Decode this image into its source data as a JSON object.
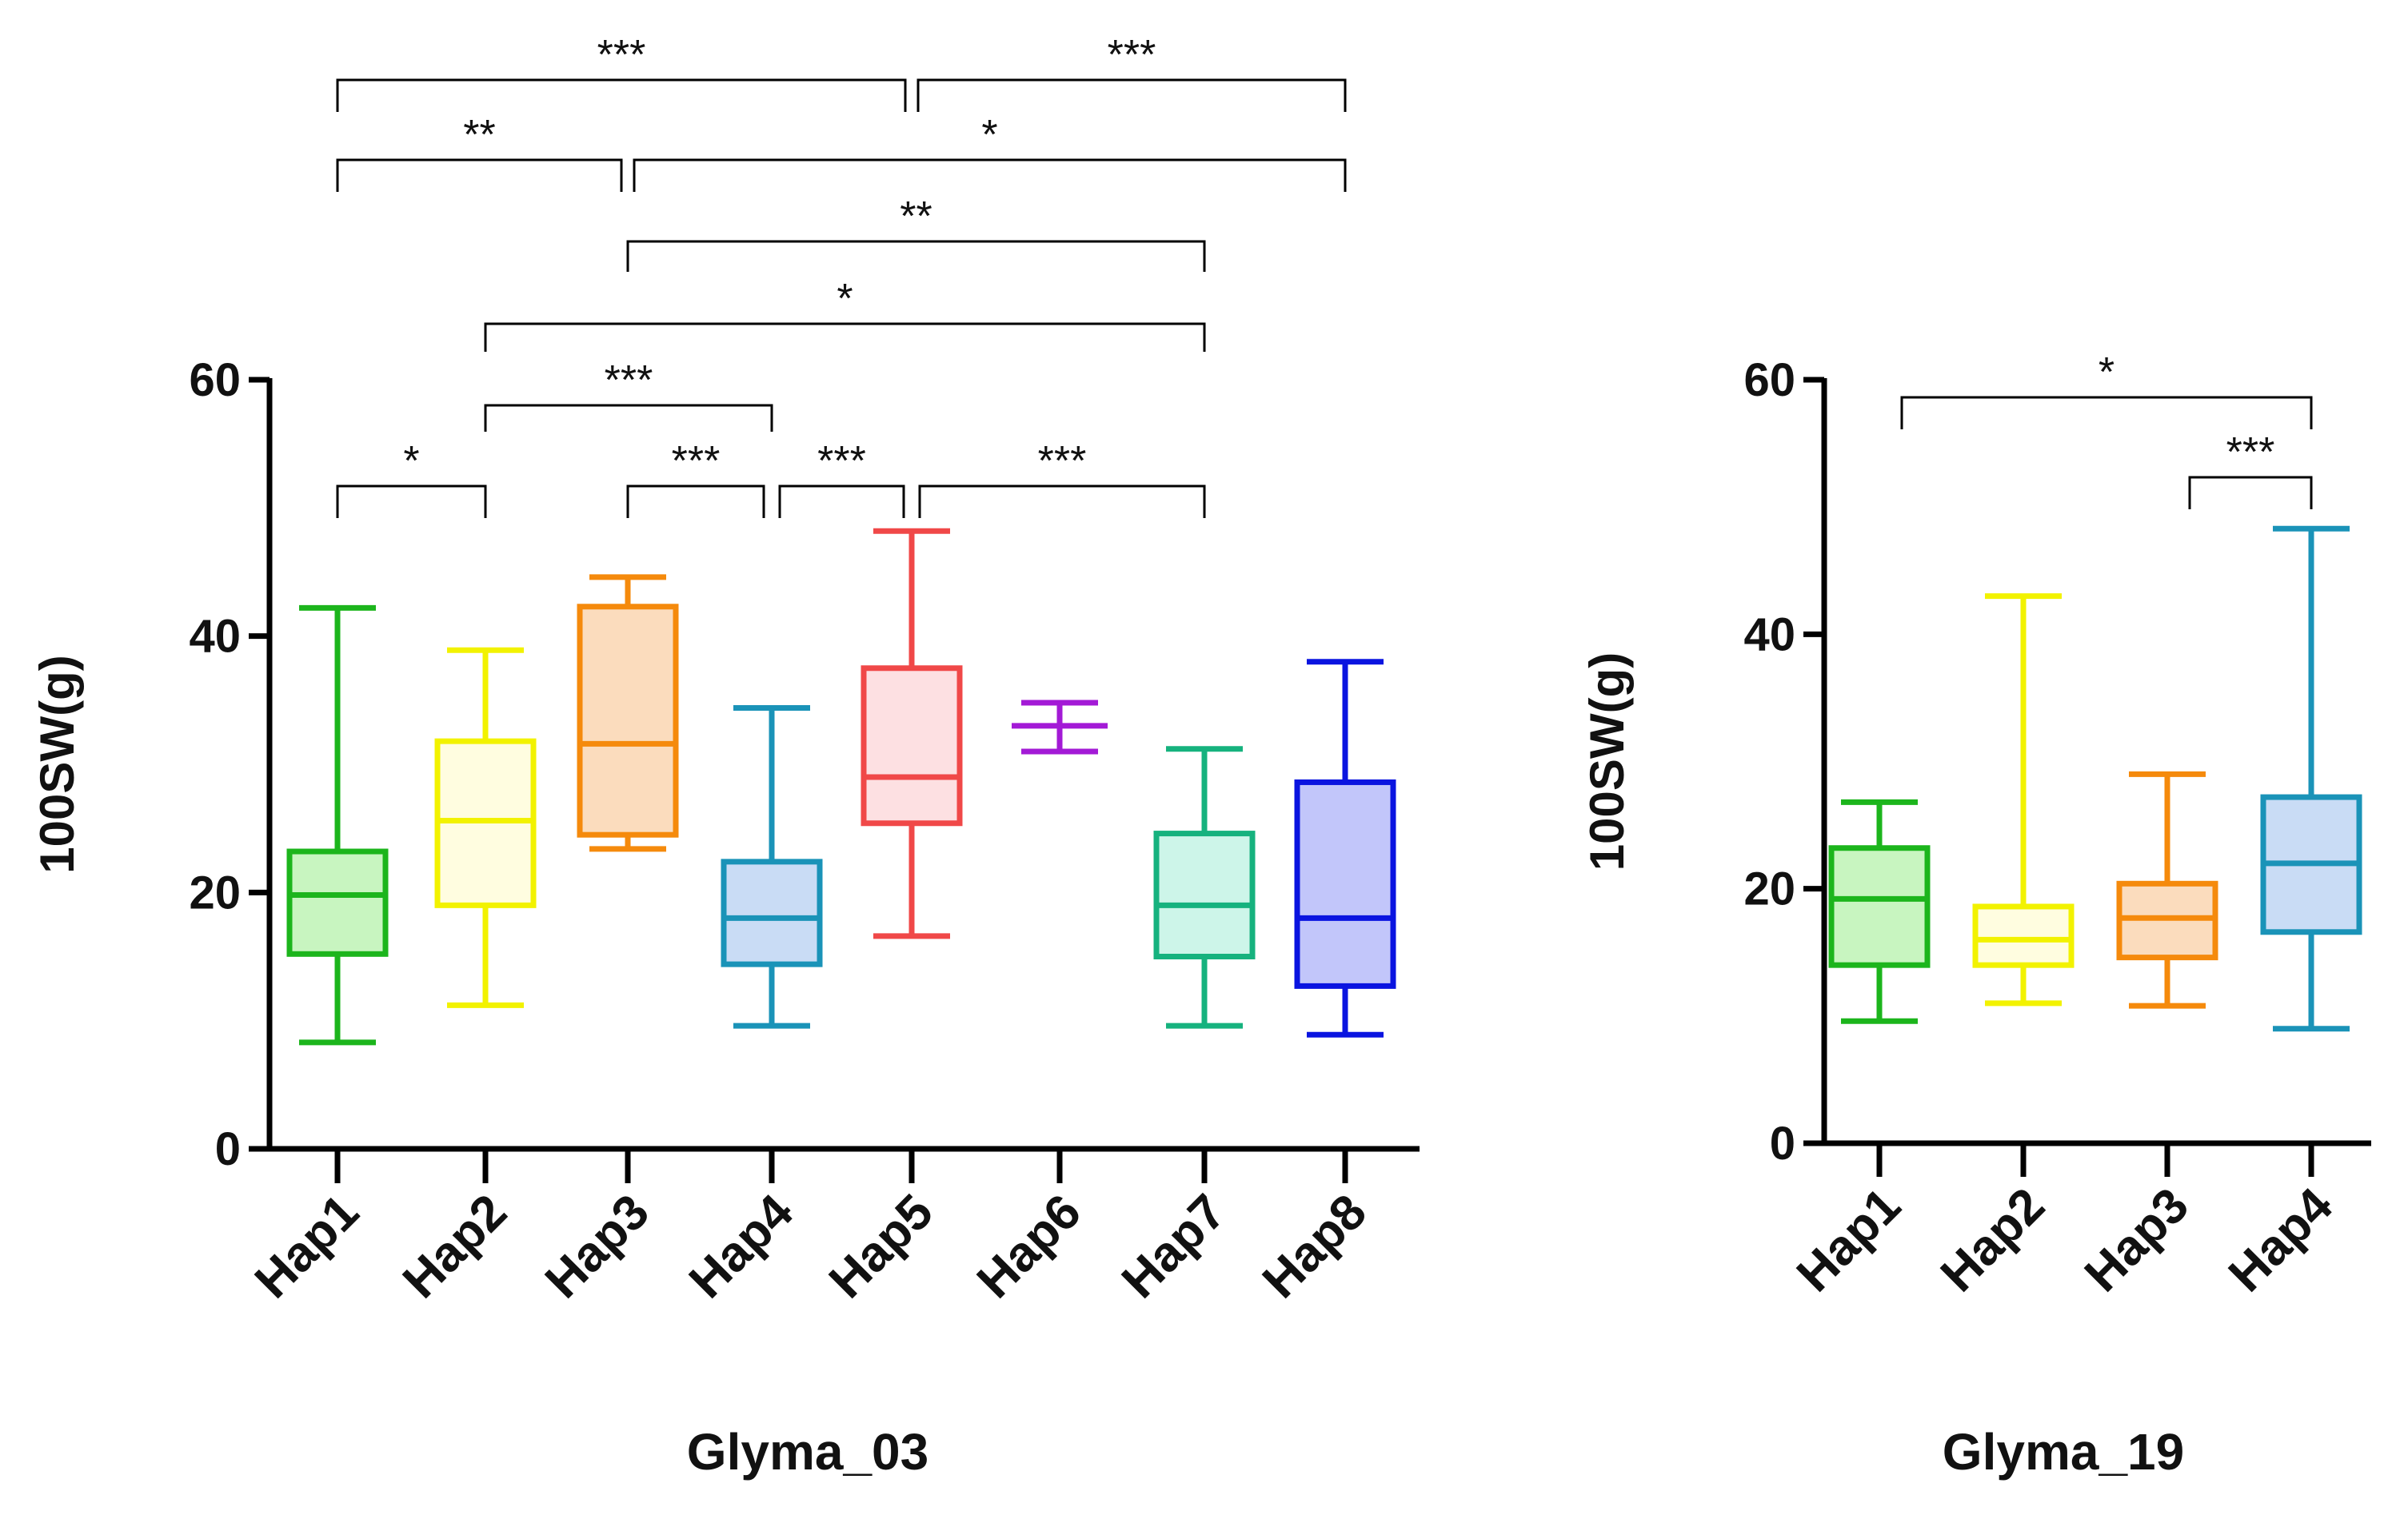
{
  "chart_data": [
    {
      "type": "box",
      "title": "",
      "xlabel": "Glyma_03",
      "ylabel": "100SW(g)",
      "ylim": [
        0,
        60
      ],
      "yticks": [
        "0",
        "20",
        "40",
        "60"
      ],
      "categories": [
        "Hap1",
        "Hap2",
        "Hap3",
        "Hap4",
        "Hap5",
        "Hap6",
        "Hap7",
        "Hap8"
      ],
      "boxes": [
        {
          "name": "Hap1",
          "min": 8.3,
          "q1": 15.2,
          "median": 19.8,
          "q3": 23.2,
          "max": 42.2,
          "color": "#1cb51c",
          "fill": "#c8f5c0"
        },
        {
          "name": "Hap2",
          "min": 11.2,
          "q1": 19.0,
          "median": 25.6,
          "q3": 31.8,
          "max": 38.9,
          "color": "#f2f200",
          "fill": "#fffde0"
        },
        {
          "name": "Hap3",
          "min": 23.4,
          "q1": 24.5,
          "median": 31.6,
          "q3": 42.3,
          "max": 44.6,
          "color": "#f58a0c",
          "fill": "#fbdcbd"
        },
        {
          "name": "Hap4",
          "min": 9.6,
          "q1": 14.4,
          "median": 18.0,
          "q3": 22.4,
          "max": 34.4,
          "color": "#1a93b8",
          "fill": "#c9dcf5"
        },
        {
          "name": "Hap5",
          "min": 16.6,
          "q1": 25.4,
          "median": 29.0,
          "q3": 37.5,
          "max": 48.2,
          "color": "#f04848",
          "fill": "#fde0e2"
        },
        {
          "name": "Hap6",
          "min": 31.0,
          "q1": 33.0,
          "median": 33.0,
          "q3": 33.0,
          "max": 34.8,
          "color": "#a31ad6",
          "fill": "none"
        },
        {
          "name": "Hap7",
          "min": 9.6,
          "q1": 15.0,
          "median": 19.0,
          "q3": 24.6,
          "max": 31.2,
          "color": "#16b27e",
          "fill": "#cdf5e9"
        },
        {
          "name": "Hap8",
          "min": 8.9,
          "q1": 12.7,
          "median": 18.0,
          "q3": 28.6,
          "max": 38.0,
          "color": "#0a14e0",
          "fill": "#c2c6fa"
        }
      ],
      "significance": [
        {
          "from": "Hap1",
          "to": "Hap2",
          "label": "*"
        },
        {
          "from": "Hap3",
          "to": "Hap4",
          "label": "***"
        },
        {
          "from": "Hap4",
          "to": "Hap5",
          "label": "***"
        },
        {
          "from": "Hap5",
          "to": "Hap7",
          "label": "***"
        },
        {
          "from": "Hap2",
          "to": "Hap4",
          "label": "***"
        },
        {
          "from": "Hap2",
          "to": "Hap7",
          "label": "*"
        },
        {
          "from": "Hap3",
          "to": "Hap7",
          "label": "**"
        },
        {
          "from": "Hap1",
          "to": "Hap3",
          "label": "**"
        },
        {
          "from": "Hap3",
          "to": "Hap8",
          "label": "*"
        },
        {
          "from": "Hap1",
          "to": "Hap5",
          "label": "***"
        },
        {
          "from": "Hap5",
          "to": "Hap8",
          "label": "***"
        }
      ]
    },
    {
      "type": "box",
      "title": "",
      "xlabel": "Glyma_19",
      "ylabel": "100SW(g)",
      "ylim": [
        0,
        60
      ],
      "yticks": [
        "0",
        "20",
        "40",
        "60"
      ],
      "categories": [
        "Hap1",
        "Hap2",
        "Hap3",
        "Hap4"
      ],
      "boxes": [
        {
          "name": "Hap1",
          "min": 9.6,
          "q1": 14.0,
          "median": 19.2,
          "q3": 23.2,
          "max": 26.8,
          "color": "#1cb51c",
          "fill": "#c8f5c0"
        },
        {
          "name": "Hap2",
          "min": 11.0,
          "q1": 14.0,
          "median": 16.0,
          "q3": 18.6,
          "max": 43.0,
          "color": "#f2f200",
          "fill": "#fffde0"
        },
        {
          "name": "Hap3",
          "min": 10.8,
          "q1": 14.6,
          "median": 17.7,
          "q3": 20.4,
          "max": 29.0,
          "color": "#f58a0c",
          "fill": "#fbdcbd"
        },
        {
          "name": "Hap4",
          "min": 9.0,
          "q1": 16.6,
          "median": 22.0,
          "q3": 27.2,
          "max": 48.3,
          "color": "#1a93b8",
          "fill": "#c9dcf5"
        }
      ],
      "significance": [
        {
          "from": "Hap1",
          "to": "Hap4",
          "label": "*"
        },
        {
          "from": "Hap3",
          "to": "Hap4",
          "label": "***"
        }
      ]
    }
  ]
}
